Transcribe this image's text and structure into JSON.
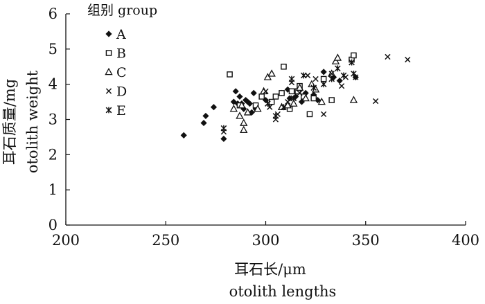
{
  "chart_data": {
    "type": "scatter",
    "title": "",
    "xlabel": "耳石长/μm",
    "xlabel_en": "otolith lengths",
    "ylabel": "耳石质量/mg",
    "ylabel_en": "otolith weight",
    "xlim": [
      200,
      400
    ],
    "ylim": [
      0,
      6
    ],
    "x_ticks": [
      200,
      250,
      300,
      350,
      400
    ],
    "y_ticks": [
      0,
      1,
      2,
      3,
      4,
      5,
      6
    ],
    "grid": false,
    "legend_title": "组别 group",
    "legend_position": "top-left",
    "series": [
      {
        "name": "A",
        "marker": "diamond-filled",
        "points": [
          [
            259,
            2.55
          ],
          [
            269,
            2.9
          ],
          [
            270,
            3.1
          ],
          [
            274,
            3.35
          ],
          [
            279,
            2.45
          ],
          [
            284,
            3.5
          ],
          [
            285,
            3.8
          ],
          [
            286,
            3.45
          ],
          [
            287,
            3.65
          ],
          [
            288,
            3.45
          ],
          [
            289,
            3.3
          ],
          [
            290,
            3.55
          ],
          [
            291,
            3.5
          ],
          [
            292,
            3.45
          ],
          [
            293,
            3.2
          ],
          [
            294,
            3.75
          ],
          [
            295,
            3.3
          ],
          [
            300,
            3.55
          ],
          [
            308,
            3.75
          ],
          [
            311,
            3.85
          ],
          [
            312,
            3.6
          ],
          [
            315,
            3.65
          ],
          [
            318,
            3.5
          ],
          [
            320,
            3.75
          ],
          [
            324,
            3.7
          ],
          [
            326,
            3.55
          ],
          [
            329,
            4.35
          ],
          [
            334,
            4.2
          ],
          [
            337,
            4.1
          ],
          [
            345,
            4.2
          ]
        ]
      },
      {
        "name": "B",
        "marker": "square-open",
        "points": [
          [
            282,
            4.28
          ],
          [
            287,
            3.4
          ],
          [
            295,
            3.4
          ],
          [
            298,
            3.65
          ],
          [
            303,
            3.5
          ],
          [
            305,
            3.65
          ],
          [
            308,
            3.75
          ],
          [
            309,
            4.5
          ],
          [
            312,
            3.3
          ],
          [
            313,
            3.8
          ],
          [
            316,
            3.8
          ],
          [
            317,
            3.95
          ],
          [
            319,
            3.65
          ],
          [
            322,
            3.15
          ],
          [
            324,
            3.6
          ],
          [
            329,
            4.15
          ],
          [
            333,
            3.55
          ],
          [
            343,
            4.7
          ],
          [
            344,
            4.82
          ]
        ]
      },
      {
        "name": "C",
        "marker": "triangle-open",
        "points": [
          [
            284,
            3.3
          ],
          [
            287,
            3.1
          ],
          [
            288,
            3.4
          ],
          [
            289,
            2.7
          ],
          [
            289,
            2.9
          ],
          [
            291,
            3.2
          ],
          [
            296,
            3.3
          ],
          [
            299,
            3.8
          ],
          [
            301,
            4.2
          ],
          [
            303,
            4.3
          ],
          [
            308,
            3.35
          ],
          [
            311,
            3.4
          ],
          [
            314,
            3.45
          ],
          [
            317,
            3.9
          ],
          [
            320,
            3.6
          ],
          [
            323,
            4.0
          ],
          [
            325,
            3.85
          ],
          [
            328,
            3.5
          ],
          [
            333,
            4.3
          ],
          [
            335,
            4.65
          ],
          [
            336,
            4.75
          ],
          [
            344,
            3.55
          ]
        ]
      },
      {
        "name": "D",
        "marker": "x",
        "points": [
          [
            279,
            2.65
          ],
          [
            300,
            3.8
          ],
          [
            302,
            3.35
          ],
          [
            305,
            3.0
          ],
          [
            306,
            3.15
          ],
          [
            311,
            3.5
          ],
          [
            313,
            4.05
          ],
          [
            317,
            3.75
          ],
          [
            321,
            4.25
          ],
          [
            325,
            4.15
          ],
          [
            329,
            3.15
          ],
          [
            333,
            4.3
          ],
          [
            338,
            3.95
          ],
          [
            340,
            4.2
          ],
          [
            345,
            4.2
          ],
          [
            355,
            3.52
          ],
          [
            361,
            4.78
          ],
          [
            371,
            4.7
          ]
        ]
      },
      {
        "name": "E",
        "marker": "x-bar",
        "points": [
          [
            279,
            2.75
          ],
          [
            301,
            3.45
          ],
          [
            305,
            3.1
          ],
          [
            309,
            3.35
          ],
          [
            313,
            4.15
          ],
          [
            314,
            3.6
          ],
          [
            319,
            4.25
          ],
          [
            324,
            3.9
          ],
          [
            329,
            4.0
          ],
          [
            333,
            4.15
          ],
          [
            336,
            4.45
          ],
          [
            339,
            4.25
          ],
          [
            343,
            4.62
          ],
          [
            344,
            4.3
          ]
        ]
      }
    ]
  }
}
